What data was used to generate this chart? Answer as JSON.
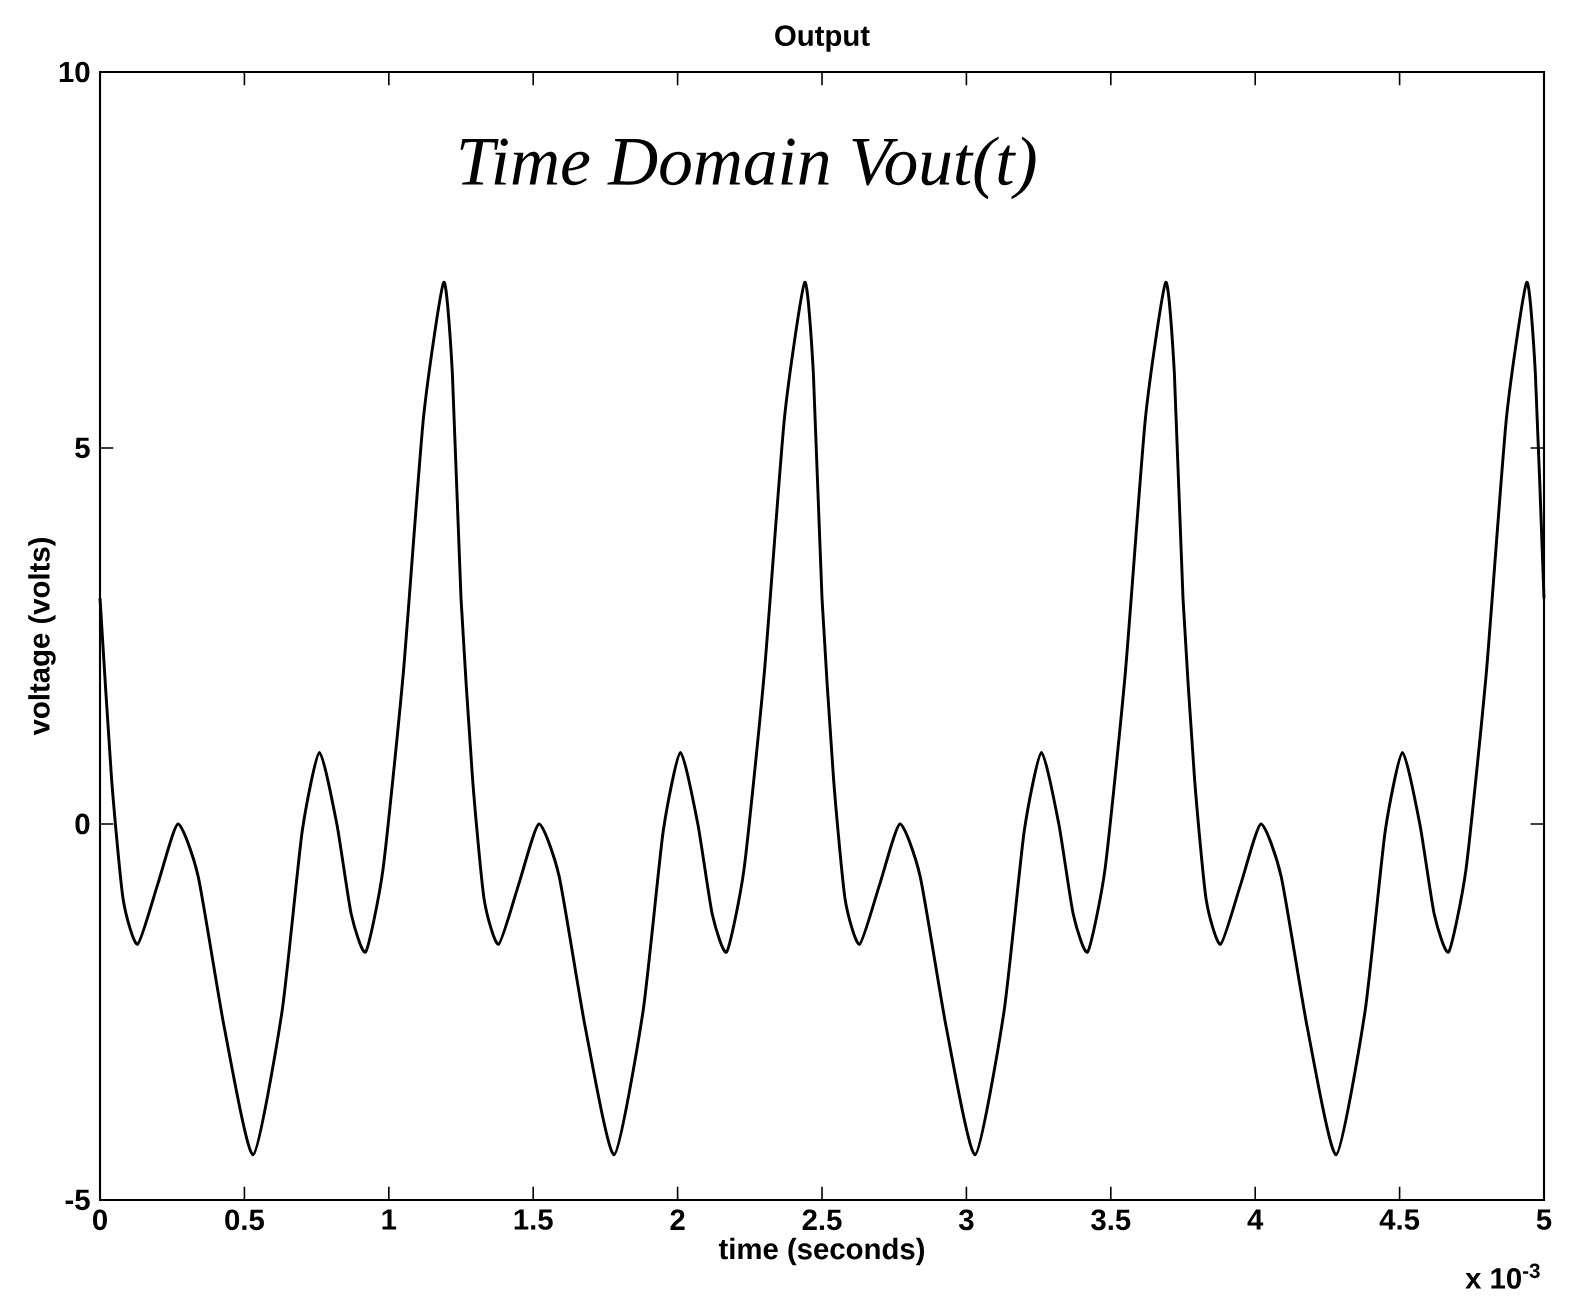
{
  "chart_data": {
    "type": "line",
    "title": "Output",
    "xlabel": "time (seconds)",
    "ylabel": "voltage (volts)",
    "annotations": [
      "Time Domain Vout(t)",
      "x 10$^{-3}$"
    ],
    "x": [
      0,
      0.04,
      0.08,
      0.13,
      0.2,
      0.27,
      0.34,
      0.43,
      0.53,
      0.63,
      0.7,
      0.76,
      0.82,
      0.87,
      0.92,
      0.98,
      1.05,
      1.12,
      1.19,
      1.22,
      1.25,
      1.29,
      1.33,
      1.38,
      1.45,
      1.52,
      1.59,
      1.68,
      1.78,
      1.88,
      1.95,
      2.01,
      2.07,
      2.12,
      2.17,
      2.23,
      2.3,
      2.37,
      2.44,
      2.47,
      2.5,
      2.54,
      2.58,
      2.63,
      2.7,
      2.77,
      2.84,
      2.93,
      3.03,
      3.13,
      3.2,
      3.26,
      3.32,
      3.37,
      3.42,
      3.48,
      3.55,
      3.62,
      3.69,
      3.72,
      3.75,
      3.79,
      3.83,
      3.88,
      3.95,
      4.02,
      4.09,
      4.18,
      4.28,
      4.38,
      4.45,
      4.51,
      4.57,
      4.62,
      4.67,
      4.73,
      4.8,
      4.87,
      4.94,
      4.97,
      5.0
    ],
    "series": [
      {
        "color": "#000000",
        "values": [
          3.0,
          0.6,
          -1.0,
          -1.6,
          -0.8,
          0.0,
          -0.7,
          -2.7,
          -4.4,
          -2.5,
          -0.1,
          0.95,
          0.0,
          -1.2,
          -1.7,
          -0.6,
          2.0,
          5.4,
          7.2,
          6.0,
          3.0,
          0.6,
          -1.0,
          -1.6,
          -0.8,
          0.0,
          -0.7,
          -2.7,
          -4.4,
          -2.5,
          -0.1,
          0.95,
          0.0,
          -1.2,
          -1.7,
          -0.6,
          2.0,
          5.4,
          7.2,
          6.0,
          3.0,
          0.6,
          -1.0,
          -1.6,
          -0.8,
          0.0,
          -0.7,
          -2.7,
          -4.4,
          -2.5,
          -0.1,
          0.95,
          0.0,
          -1.2,
          -1.7,
          -0.6,
          2.0,
          5.4,
          7.2,
          6.0,
          3.0,
          0.6,
          -1.0,
          -1.6,
          -0.8,
          0.0,
          -0.7,
          -2.7,
          -4.4,
          -2.5,
          -0.1,
          0.95,
          0.0,
          -1.2,
          -1.7,
          -0.6,
          2.0,
          5.4,
          7.2,
          6.0,
          3.0
        ]
      }
    ],
    "xlim": [
      0,
      5
    ],
    "ylim": [
      -5,
      10
    ],
    "xticks": [
      0,
      0.5,
      1,
      1.5,
      2,
      2.5,
      3,
      3.5,
      4,
      4.5,
      5
    ],
    "yticks": [
      -5,
      0,
      5,
      10
    ],
    "line_style": "solid"
  }
}
